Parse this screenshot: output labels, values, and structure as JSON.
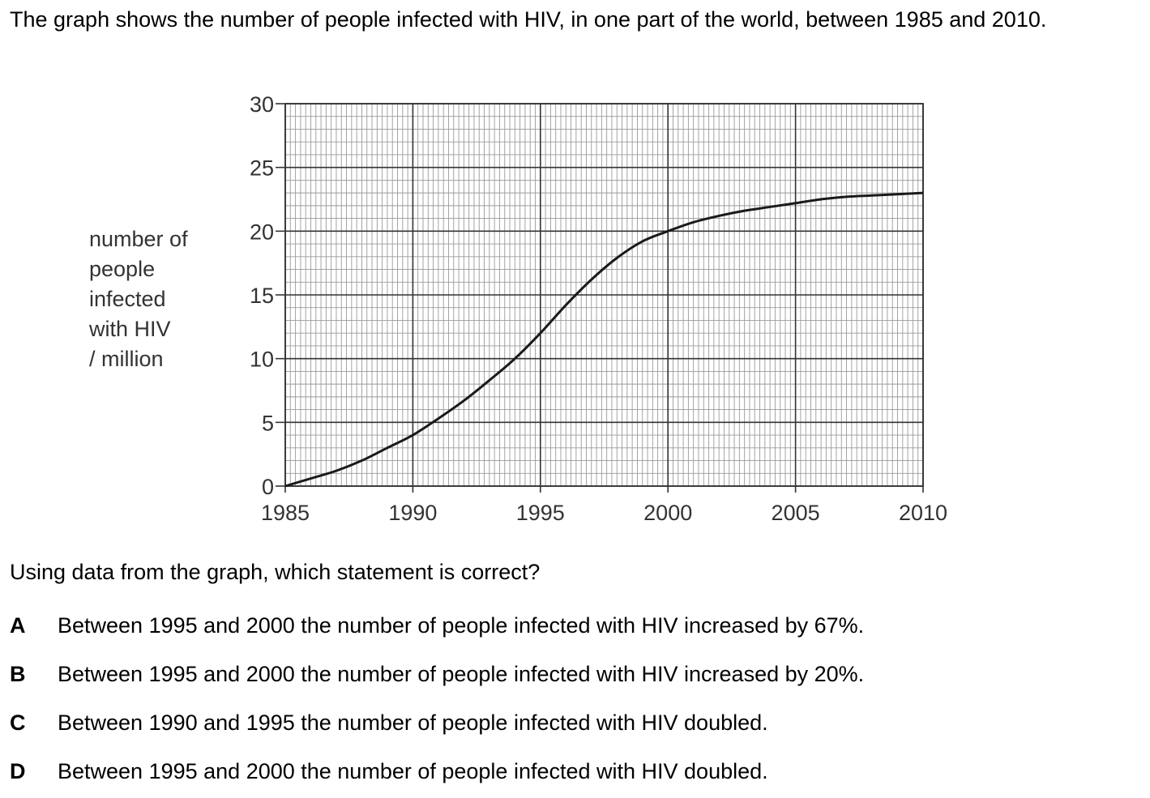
{
  "intro_text": "The graph shows the number of people infected with HIV, in one part of the world, between 1985 and 2010.",
  "ylabel_lines": [
    "number of",
    "people",
    "infected",
    "with HIV",
    "/ million"
  ],
  "question": "Using data from the graph, which statement is correct?",
  "options": [
    {
      "letter": "A",
      "text": "Between 1995 and 2000 the number of people infected with HIV increased by 67%."
    },
    {
      "letter": "B",
      "text": "Between 1995 and 2000 the number of people infected with HIV increased by 20%."
    },
    {
      "letter": "C",
      "text": "Between 1990 and 1995 the number of people infected with HIV doubled."
    },
    {
      "letter": "D",
      "text": "Between 1995 and 2000 the number of people infected with HIV doubled."
    }
  ],
  "chart_data": {
    "type": "line",
    "title": "",
    "xlabel": "",
    "ylabel": "number of people infected with HIV / million",
    "xlim": [
      1985,
      2010
    ],
    "ylim": [
      0,
      30
    ],
    "x_ticks": [
      1985,
      1990,
      1995,
      2000,
      2005,
      2010
    ],
    "y_ticks": [
      0,
      5,
      10,
      15,
      20,
      25,
      30
    ],
    "grid": true,
    "series": [
      {
        "x": [
          1985,
          1986,
          1987,
          1988,
          1989,
          1990,
          1991,
          1992,
          1993,
          1994,
          1995,
          1996,
          1997,
          1998,
          1999,
          2000,
          2001,
          2002,
          2003,
          2004,
          2005,
          2006,
          2007,
          2008,
          2009,
          2010
        ],
        "values": [
          0,
          0.6,
          1.2,
          2.0,
          3.0,
          4.0,
          5.3,
          6.7,
          8.3,
          10.0,
          12.0,
          14.2,
          16.2,
          17.9,
          19.2,
          20.0,
          20.7,
          21.2,
          21.6,
          21.9,
          22.2,
          22.5,
          22.7,
          22.8,
          22.9,
          23.0
        ]
      }
    ]
  }
}
